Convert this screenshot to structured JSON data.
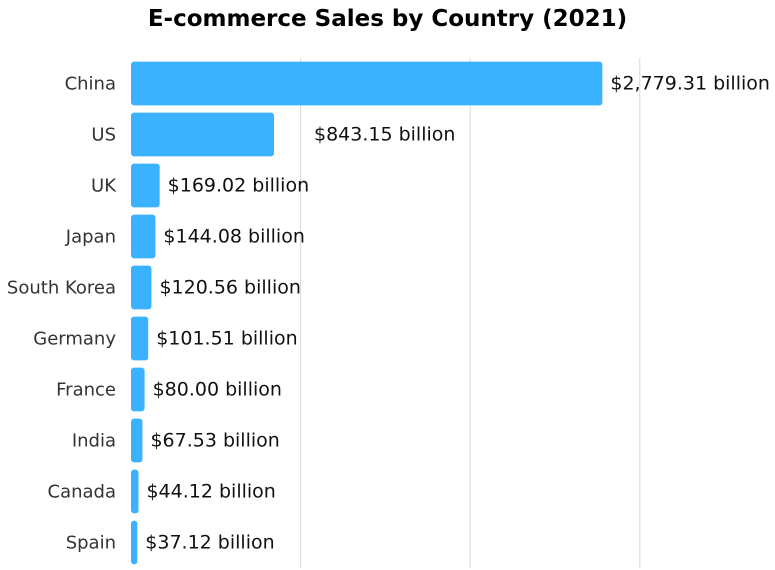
{
  "chart_data": {
    "type": "bar",
    "orientation": "horizontal",
    "title": "E-commerce Sales by Country (2021)",
    "xlabel": "",
    "ylabel": "",
    "categories": [
      "China",
      "US",
      "UK",
      "Japan",
      "South Korea",
      "Germany",
      "France",
      "India",
      "Canada",
      "Spain"
    ],
    "values": [
      2779.31,
      843.15,
      169.02,
      144.08,
      120.56,
      101.51,
      80.0,
      67.53,
      44.12,
      37.12
    ],
    "value_labels": [
      "$2,779.31 billion",
      "$843.15 billion",
      "$169.02 billion",
      "$144.08 billion",
      "$120.56 billion",
      "$101.51 billion",
      "$80.00 billion",
      "$67.53 billion",
      "$44.12 billion",
      "$37.12 billion"
    ],
    "unit": "billion USD",
    "xlim": [
      0,
      3800
    ],
    "grid": true,
    "bar_color": "#3AB2FF"
  }
}
